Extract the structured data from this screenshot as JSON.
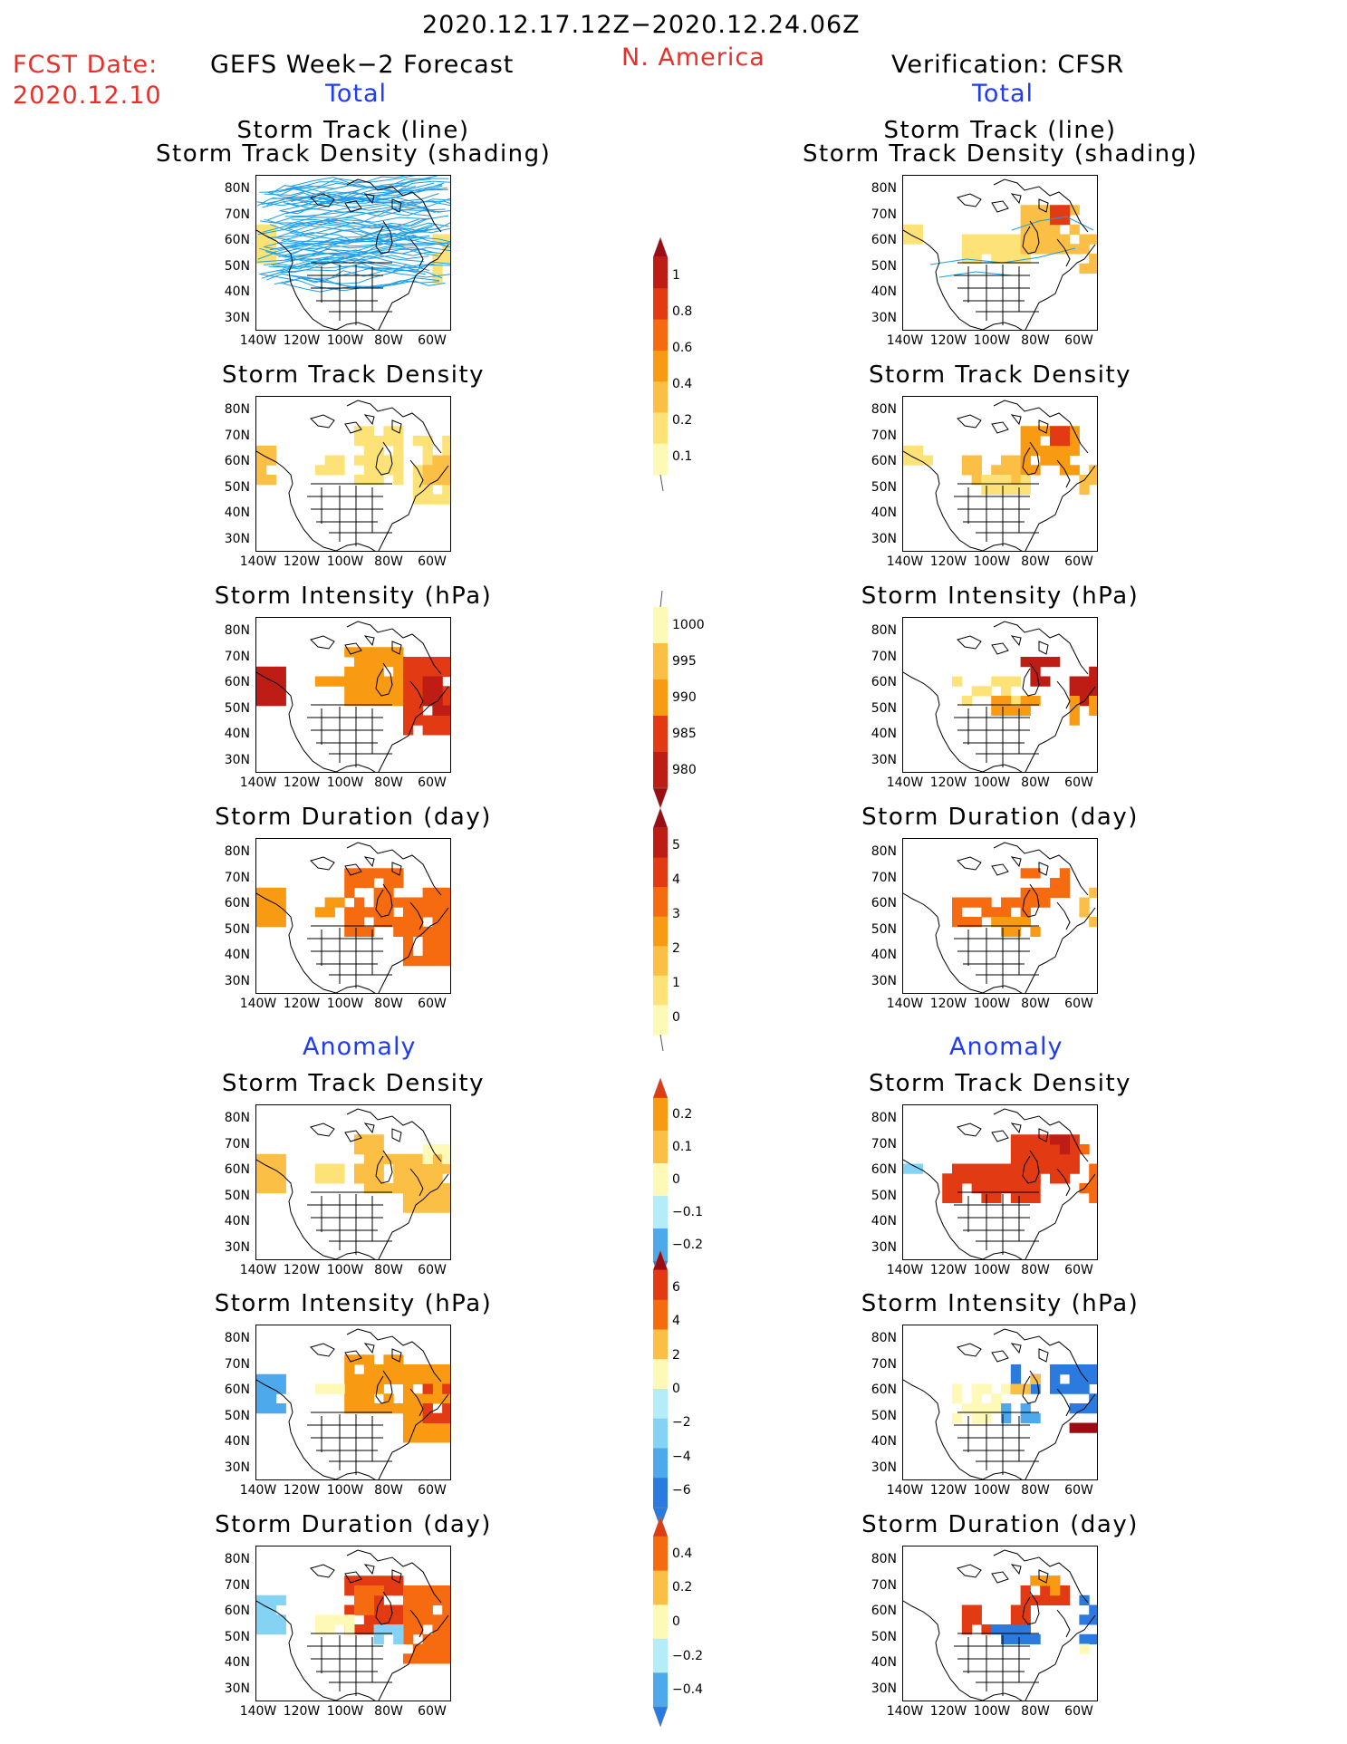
{
  "header": {
    "date_range": "2020.12.17.12Z−2020.12.24.06Z",
    "region": "N. America",
    "fcst_label": "FCST Date:",
    "fcst_date": "2020.12.10",
    "forecast_title": "GEFS Week−2 Forecast",
    "verification_title": "Verification: CFSR",
    "total_label": "Total",
    "anomaly_label": "Anomaly"
  },
  "axes": {
    "lat_ticks": [
      "80N",
      "70N",
      "60N",
      "50N",
      "40N",
      "30N"
    ],
    "lon_ticks": [
      "140W",
      "120W",
      "100W",
      "80W",
      "60W"
    ]
  },
  "colors": {
    "pos": [
      "#fff9b8",
      "#fde377",
      "#fbbf45",
      "#f99b12",
      "#f66a10",
      "#e23a12",
      "#bd1d14",
      "#9b0d12"
    ],
    "neg": [
      "#b4ecf8",
      "#84d2f4",
      "#4ea8ec",
      "#2b7ae0",
      "#1453c8"
    ],
    "track_line": "#1d9ee6"
  },
  "panels": {
    "track_line_density": "Storm Track (line)\nStorm Track Density (shading)",
    "density": "Storm Track Density",
    "intensity": "Storm Intensity (hPa)",
    "duration": "Storm Duration (day)"
  },
  "colorbars": {
    "density": {
      "labels": [
        "1",
        "0.8",
        "0.6",
        "0.4",
        "0.2",
        "0.1"
      ]
    },
    "intensity": {
      "labels": [
        "1000",
        "995",
        "990",
        "985",
        "980"
      ]
    },
    "duration": {
      "labels": [
        "5",
        "4",
        "3",
        "2",
        "1",
        "0"
      ]
    },
    "anom_density": {
      "labels": [
        "0.2",
        "0.1",
        "0",
        "−0.1",
        "−0.2"
      ]
    },
    "anom_intensity": {
      "labels": [
        "6",
        "4",
        "2",
        "0",
        "−2",
        "−4",
        "−6"
      ]
    },
    "anom_duration": {
      "labels": [
        "0.4",
        "0.2",
        "0",
        "−0.2",
        "−0.4"
      ]
    }
  }
}
